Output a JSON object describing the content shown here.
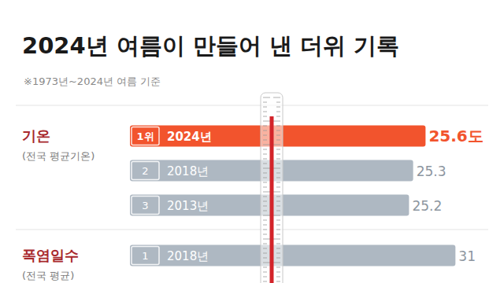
{
  "header": {
    "title": "2024년 여름이 만들어 낸 더위 기록",
    "note": "※1973년~2024년 여름 기준"
  },
  "chart_data": [
    {
      "type": "bar",
      "orientation": "horizontal",
      "title": "기온",
      "subtitle": "(전국 평균기온)",
      "ranks": [
        "1위",
        "2",
        "3"
      ],
      "categories": [
        "2024년",
        "2018년",
        "2013년"
      ],
      "values": [
        25.6,
        25.3,
        25.2
      ],
      "value_labels": [
        "25.6도",
        "25.3",
        "25.2"
      ],
      "colors": [
        "#f2542d",
        "#aeb8c2",
        "#aeb8c2"
      ],
      "xlim": [
        18.45,
        26.45
      ],
      "data_labels": true,
      "tick_labels": false
    },
    {
      "type": "bar",
      "orientation": "horizontal",
      "title": "폭염일수",
      "subtitle": "(전국 평균)",
      "ranks": [
        "1"
      ],
      "categories": [
        "2018년"
      ],
      "values": [
        31
      ],
      "colors": [
        "#aeb8c2"
      ],
      "xlim": [
        0,
        31.5
      ],
      "data_labels": true,
      "tick_labels": false
    }
  ]
}
